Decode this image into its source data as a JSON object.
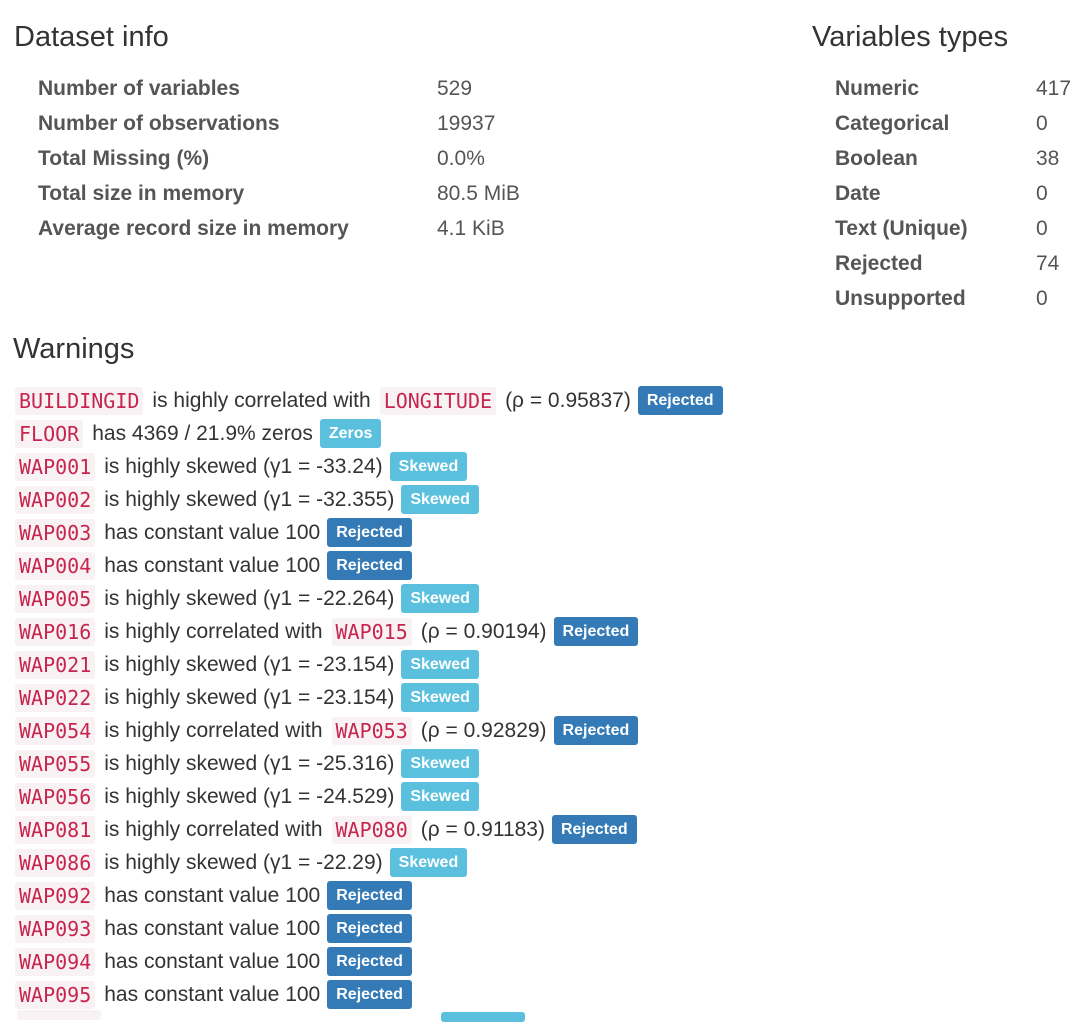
{
  "dataset_info": {
    "title": "Dataset info",
    "rows": [
      {
        "label": "Number of variables",
        "value": "529"
      },
      {
        "label": "Number of observations",
        "value": "19937"
      },
      {
        "label": "Total Missing (%)",
        "value": "0.0%"
      },
      {
        "label": "Total size in memory",
        "value": "80.5 MiB"
      },
      {
        "label": "Average record size in memory",
        "value": "4.1 KiB"
      }
    ]
  },
  "variable_types": {
    "title": "Variables types",
    "rows": [
      {
        "label": "Numeric",
        "value": "417"
      },
      {
        "label": "Categorical",
        "value": "0"
      },
      {
        "label": "Boolean",
        "value": "38"
      },
      {
        "label": "Date",
        "value": "0"
      },
      {
        "label": "Text (Unique)",
        "value": "0"
      },
      {
        "label": "Rejected",
        "value": "74"
      },
      {
        "label": "Unsupported",
        "value": "0"
      }
    ]
  },
  "warnings": {
    "title": "Warnings",
    "items": [
      {
        "var": "BUILDINGID",
        "text": "is highly correlated with",
        "var2": "LONGITUDE",
        "tail": "(ρ = 0.95837)",
        "badge": "Rejected",
        "badge_type": "rejected"
      },
      {
        "var": "FLOOR",
        "text": "has 4369 / 21.9% zeros",
        "var2": "",
        "tail": "",
        "badge": "Zeros",
        "badge_type": "zeros"
      },
      {
        "var": "WAP001",
        "text": "is highly skewed (γ1 = -33.24)",
        "var2": "",
        "tail": "",
        "badge": "Skewed",
        "badge_type": "skewed"
      },
      {
        "var": "WAP002",
        "text": "is highly skewed (γ1 = -32.355)",
        "var2": "",
        "tail": "",
        "badge": "Skewed",
        "badge_type": "skewed"
      },
      {
        "var": "WAP003",
        "text": "has constant value 100",
        "var2": "",
        "tail": "",
        "badge": "Rejected",
        "badge_type": "rejected"
      },
      {
        "var": "WAP004",
        "text": "has constant value 100",
        "var2": "",
        "tail": "",
        "badge": "Rejected",
        "badge_type": "rejected"
      },
      {
        "var": "WAP005",
        "text": "is highly skewed (γ1 = -22.264)",
        "var2": "",
        "tail": "",
        "badge": "Skewed",
        "badge_type": "skewed"
      },
      {
        "var": "WAP016",
        "text": "is highly correlated with",
        "var2": "WAP015",
        "tail": "(ρ = 0.90194)",
        "badge": "Rejected",
        "badge_type": "rejected"
      },
      {
        "var": "WAP021",
        "text": "is highly skewed (γ1 = -23.154)",
        "var2": "",
        "tail": "",
        "badge": "Skewed",
        "badge_type": "skewed"
      },
      {
        "var": "WAP022",
        "text": "is highly skewed (γ1 = -23.154)",
        "var2": "",
        "tail": "",
        "badge": "Skewed",
        "badge_type": "skewed"
      },
      {
        "var": "WAP054",
        "text": "is highly correlated with",
        "var2": "WAP053",
        "tail": "(ρ = 0.92829)",
        "badge": "Rejected",
        "badge_type": "rejected"
      },
      {
        "var": "WAP055",
        "text": "is highly skewed (γ1 = -25.316)",
        "var2": "",
        "tail": "",
        "badge": "Skewed",
        "badge_type": "skewed"
      },
      {
        "var": "WAP056",
        "text": "is highly skewed (γ1 = -24.529)",
        "var2": "",
        "tail": "",
        "badge": "Skewed",
        "badge_type": "skewed"
      },
      {
        "var": "WAP081",
        "text": "is highly correlated with",
        "var2": "WAP080",
        "tail": "(ρ = 0.91183)",
        "badge": "Rejected",
        "badge_type": "rejected"
      },
      {
        "var": "WAP086",
        "text": "is highly skewed (γ1 = -22.29)",
        "var2": "",
        "tail": "",
        "badge": "Skewed",
        "badge_type": "skewed"
      },
      {
        "var": "WAP092",
        "text": "has constant value 100",
        "var2": "",
        "tail": "",
        "badge": "Rejected",
        "badge_type": "rejected"
      },
      {
        "var": "WAP093",
        "text": "has constant value 100",
        "var2": "",
        "tail": "",
        "badge": "Rejected",
        "badge_type": "rejected"
      },
      {
        "var": "WAP094",
        "text": "has constant value 100",
        "var2": "",
        "tail": "",
        "badge": "Rejected",
        "badge_type": "rejected"
      },
      {
        "var": "WAP095",
        "text": "has constant value 100",
        "var2": "",
        "tail": "",
        "badge": "Rejected",
        "badge_type": "rejected"
      }
    ]
  },
  "colors": {
    "code_text": "#c7254e",
    "code_bg": "#f9f2f4",
    "badge_rejected": "#337ab7",
    "badge_skewed": "#5bc0de",
    "badge_zeros": "#5bc0de"
  }
}
